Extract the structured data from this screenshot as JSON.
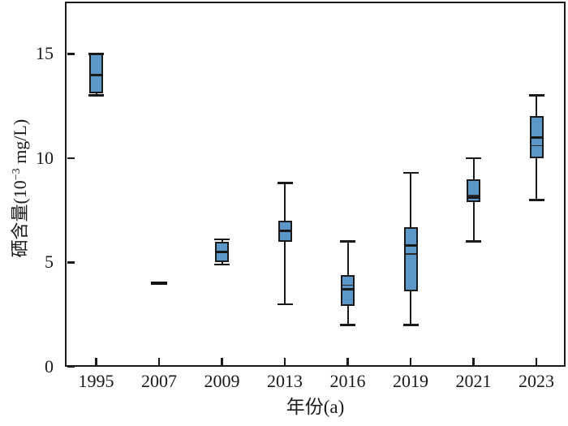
{
  "chart_data": {
    "type": "box",
    "title": "",
    "xlabel": "年份(a)",
    "ylabel": "硒含量(10⁻³ mg/L)",
    "ylabel_parts": {
      "prefix": "硒含量(10",
      "exponent": "−3",
      "suffix": " mg/L)"
    },
    "categories": [
      "1995",
      "2007",
      "2009",
      "2013",
      "2016",
      "2019",
      "2021",
      "2023"
    ],
    "yticks": [
      0,
      5,
      10,
      15
    ],
    "ylim": [
      0,
      17.5
    ],
    "grid": false,
    "legend": "none",
    "box_fill_color": "#5d97c9",
    "line_color": "#1a1a1a",
    "boxes": [
      {
        "category": "1995",
        "low": 13.0,
        "q1": 13.1,
        "median": 14.0,
        "q3": 15.0,
        "high": 15.0,
        "mean_line": null,
        "single_value": null
      },
      {
        "category": "2007",
        "low": null,
        "q1": null,
        "median": null,
        "q3": null,
        "high": null,
        "mean_line": null,
        "single_value": 4.0
      },
      {
        "category": "2009",
        "low": 4.9,
        "q1": 5.0,
        "median": 5.5,
        "q3": 6.0,
        "high": 6.1,
        "mean_line": null,
        "single_value": null
      },
      {
        "category": "2013",
        "low": 3.0,
        "q1": 6.0,
        "median": 6.5,
        "q3": 7.0,
        "high": 8.8,
        "mean_line": null,
        "single_value": null
      },
      {
        "category": "2016",
        "low": 2.0,
        "q1": 2.9,
        "median": 3.7,
        "q3": 4.4,
        "high": 6.0,
        "mean_line": 3.9,
        "single_value": null
      },
      {
        "category": "2019",
        "low": 2.0,
        "q1": 3.6,
        "median": 5.8,
        "q3": 6.7,
        "high": 9.3,
        "mean_line": 5.4,
        "single_value": null
      },
      {
        "category": "2021",
        "low": 6.0,
        "q1": 7.9,
        "median": 8.1,
        "q3": 9.0,
        "high": 10.0,
        "mean_line": 8.2,
        "single_value": null
      },
      {
        "category": "2023",
        "low": 8.0,
        "q1": 10.0,
        "median": 11.0,
        "q3": 12.0,
        "high": 13.0,
        "mean_line": 10.6,
        "single_value": null
      }
    ]
  }
}
